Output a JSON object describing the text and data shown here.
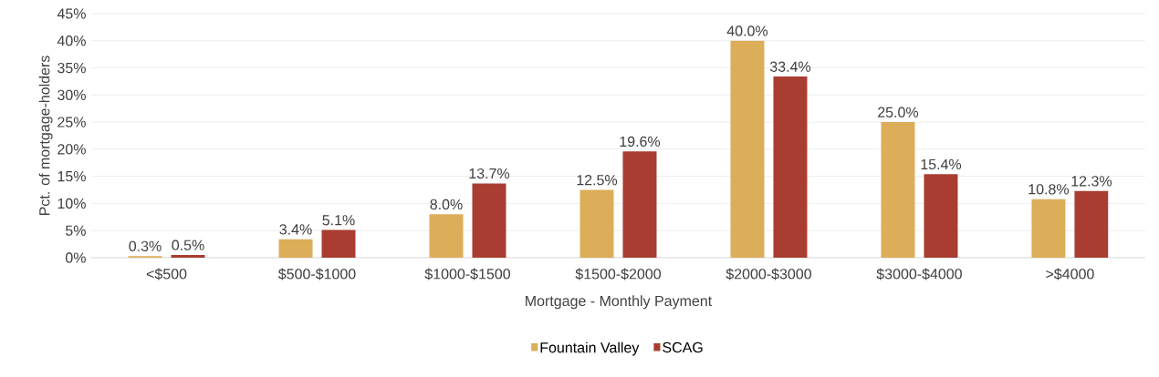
{
  "chart_data": {
    "type": "bar",
    "xlabel": "Mortgage - Monthly Payment",
    "ylabel": "Pct. of mortgage-holders",
    "categories": [
      "<$500",
      "$500-$1000",
      "$1000-$1500",
      "$1500-$2000",
      "$2000-$3000",
      "$3000-$4000",
      ">$4000"
    ],
    "series": [
      {
        "name": "Fountain Valley",
        "color": "#dcae5a",
        "values": [
          0.3,
          3.4,
          8.0,
          12.5,
          40.0,
          25.0,
          10.8
        ],
        "value_labels": [
          "0.3%",
          "3.4%",
          "8.0%",
          "12.5%",
          "40.0%",
          "25.0%",
          "10.8%"
        ]
      },
      {
        "name": "SCAG",
        "color": "#a93d31",
        "values": [
          0.5,
          5.1,
          13.7,
          19.6,
          33.4,
          15.4,
          12.3
        ],
        "value_labels": [
          "0.5%",
          "5.1%",
          "13.7%",
          "19.6%",
          "33.4%",
          "15.4%",
          "12.3%"
        ]
      }
    ],
    "ylim": [
      0,
      45
    ],
    "yticks": [
      {
        "value": 0,
        "label": "0%"
      },
      {
        "value": 5,
        "label": "5%"
      },
      {
        "value": 10,
        "label": "10%"
      },
      {
        "value": 15,
        "label": "15%"
      },
      {
        "value": 20,
        "label": "20%"
      },
      {
        "value": 25,
        "label": "25%"
      },
      {
        "value": 30,
        "label": "30%"
      },
      {
        "value": 35,
        "label": "35%"
      },
      {
        "value": 40,
        "label": "40%"
      },
      {
        "value": 45,
        "label": "45%"
      }
    ],
    "grid": "y",
    "legend": "bottom"
  }
}
